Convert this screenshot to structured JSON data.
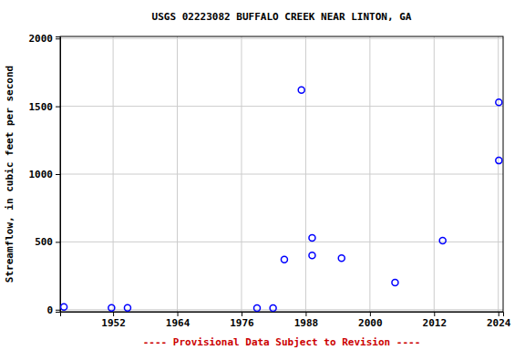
{
  "chart_data": {
    "type": "scatter",
    "title": "USGS 02223082 BUFFALO CREEK NEAR LINTON, GA",
    "y_label": "Streamflow, in cubic feet per second",
    "annotations": [
      "---- Provisional Data Subject to Revision ----"
    ],
    "x": [
      1942.8,
      1951.7,
      1954.7,
      1978.9,
      1981.9,
      1984.0,
      1987.2,
      1989.2,
      1989.2,
      1994.7,
      2004.7,
      2013.6,
      2024.1,
      2024.1
    ],
    "values": [
      20,
      13,
      13,
      12,
      12,
      370,
      1620,
      530,
      400,
      380,
      200,
      510,
      1530,
      1100
    ],
    "xlim": [
      1942.1,
      2024.9
    ],
    "xticks": [
      1952,
      1964,
      1976,
      1988,
      2000,
      2012,
      2024
    ],
    "ylim": [
      -15,
      2015
    ],
    "yticks": [
      0,
      500,
      1000,
      1500,
      2000
    ],
    "grid": true,
    "color": "#0000ff",
    "marker": "circle"
  }
}
